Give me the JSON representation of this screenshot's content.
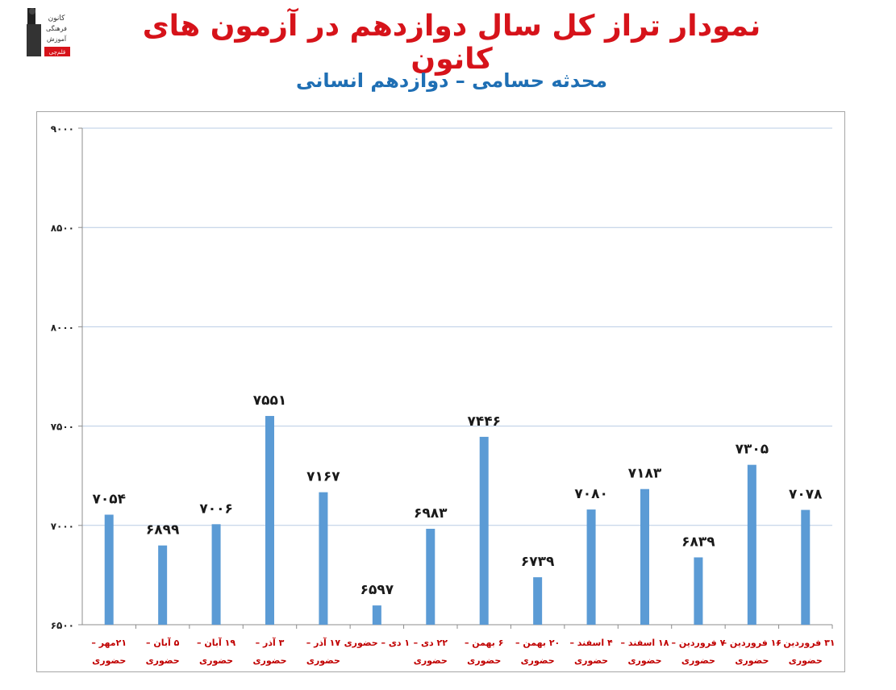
{
  "header": {
    "title": "نمودار تراز کل سال دوازدهم در آزمون های کانون",
    "subtitle": "محدثه حسامی – دوازدهم انسانی",
    "logo_lines": [
      "کانون",
      "فرهنگی",
      "آموزش",
      "قلم‌چی"
    ]
  },
  "colors": {
    "title": "#d6131a",
    "subtitle": "#1f6fb4",
    "bar": "#5b9bd5",
    "category_label": "#c00000",
    "value_label": "#1a1a1a",
    "grid": "#b8cce4"
  },
  "chart_data": {
    "type": "bar",
    "ylim": [
      6500,
      9000
    ],
    "yticks": [
      6500,
      7000,
      7500,
      8000,
      8500,
      9000
    ],
    "ytick_labels": [
      "۶۵۰۰",
      "۷۰۰۰",
      "۷۵۰۰",
      "۸۰۰۰",
      "۸۵۰۰",
      "۹۰۰۰"
    ],
    "grid": true,
    "categories": [
      [
        "۲۱مهر –",
        "حضوری"
      ],
      [
        "۵ آبان –",
        "حضوری"
      ],
      [
        "۱۹ آبان –",
        "حضوری"
      ],
      [
        "۳ آذر –",
        "حضوری"
      ],
      [
        "۱۷ آذر –",
        "حضوری"
      ],
      [
        "۱ دی – حضوری",
        ""
      ],
      [
        "۲۲ دی –",
        "حضوری"
      ],
      [
        "۶ بهمن –",
        "حضوری"
      ],
      [
        "۲۰ بهمن –",
        "حضوری"
      ],
      [
        "۴ اسفند –",
        "حضوری"
      ],
      [
        "۱۸ اسفند –",
        "حضوری"
      ],
      [
        "۷ فروردین –",
        "حضوری"
      ],
      [
        "۱۶ فروردین –",
        "حضوری"
      ],
      [
        "۳۱ فروردین –",
        "حضوری"
      ]
    ],
    "values": [
      7054,
      6899,
      7006,
      7551,
      7167,
      6597,
      6983,
      7446,
      6739,
      7080,
      7183,
      6839,
      7305,
      7078
    ],
    "value_labels": [
      "۷۰۵۴",
      "۶۸۹۹",
      "۷۰۰۶",
      "۷۵۵۱",
      "۷۱۶۷",
      "۶۵۹۷",
      "۶۹۸۳",
      "۷۴۴۶",
      "۶۷۳۹",
      "۷۰۸۰",
      "۷۱۸۳",
      "۶۸۳۹",
      "۷۳۰۵",
      "۷۰۷۸"
    ]
  }
}
